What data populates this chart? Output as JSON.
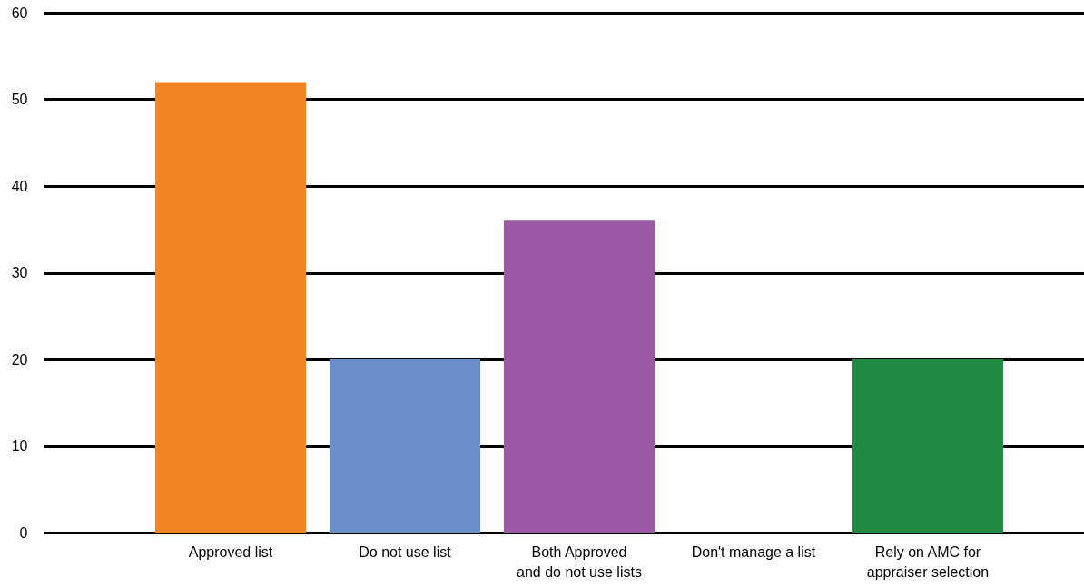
{
  "chart_data": {
    "type": "bar",
    "categories": [
      "Approved list",
      "Do not use list",
      "Both Approved\nand do not use lists",
      "Don't manage a list",
      "Rely on AMC for\nappraiser selection"
    ],
    "values": [
      52,
      20,
      36,
      0,
      20
    ],
    "colors": [
      "#f28422",
      "#6a8ec9",
      "#9a59a2",
      "#7f7f7f",
      "#208a43"
    ],
    "ylim": [
      0,
      60
    ],
    "yticks": [
      0,
      10,
      20,
      30,
      40,
      50,
      60
    ],
    "grid": "y"
  }
}
